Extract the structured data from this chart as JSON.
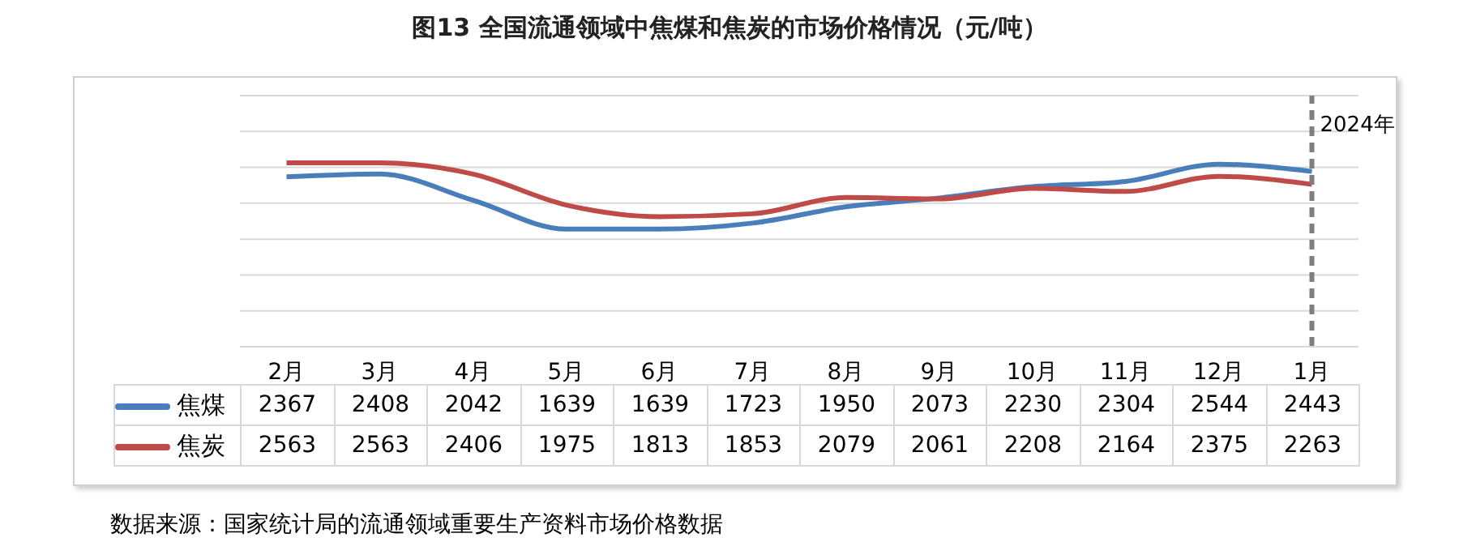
{
  "chart_data": {
    "type": "line",
    "title": "图13  全国流通领域中焦煤和焦炭的市场价格情况（元/吨）",
    "categories": [
      "2月",
      "3月",
      "4月",
      "5月",
      "6月",
      "7月",
      "8月",
      "9月",
      "10月",
      "11月",
      "12月",
      "1月"
    ],
    "series": [
      {
        "name": "焦煤",
        "color": "#4a7ebb",
        "values": [
          2367,
          2408,
          2042,
          1639,
          1639,
          1723,
          1950,
          2073,
          2230,
          2304,
          2544,
          2443
        ]
      },
      {
        "name": "焦炭",
        "color": "#be4b48",
        "values": [
          2563,
          2563,
          2406,
          1975,
          1813,
          1853,
          2079,
          2061,
          2208,
          2164,
          2375,
          2263
        ]
      }
    ],
    "ylim": [
      0,
      3500
    ],
    "grid": "y",
    "tick_labels": "x",
    "data_labels": true,
    "legend": "bottom left",
    "marker": "none",
    "line_style": "solid",
    "ref_lines": [
      {
        "axis": "x",
        "value": "1月",
        "label": "2024年",
        "color": "#7f7f7f",
        "line_style": "dashed"
      }
    ],
    "annotations": [
      "数据来源：国家统计局的流通领域重要生产资料市场价格数据"
    ]
  }
}
